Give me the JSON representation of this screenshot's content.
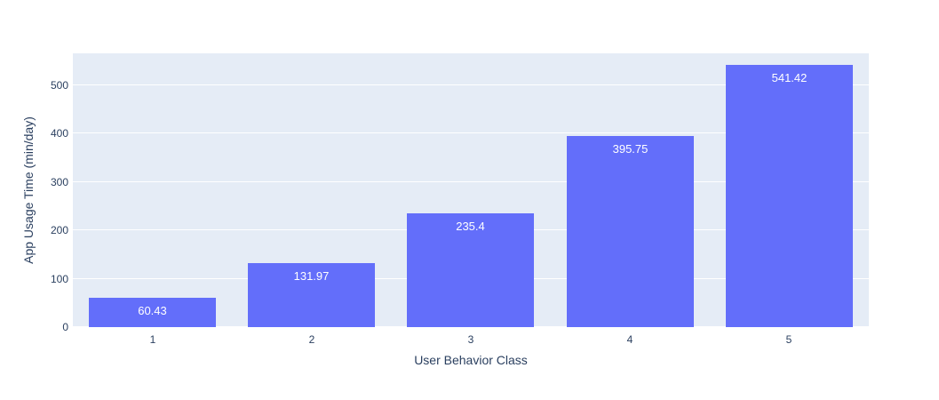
{
  "chart_data": {
    "type": "bar",
    "title": "",
    "xlabel": "User Behavior Class",
    "ylabel": "App Usage Time (min/day)",
    "categories": [
      "1",
      "2",
      "3",
      "4",
      "5"
    ],
    "values": [
      60.43,
      131.97,
      235.4,
      395.75,
      541.42
    ],
    "bar_labels": [
      "60.43",
      "131.97",
      "235.4",
      "395.75",
      "541.42"
    ],
    "y_ticks": [
      0,
      100,
      200,
      300,
      400,
      500
    ],
    "ylim": [
      0,
      566
    ],
    "bar_band_fraction": 0.8,
    "grid": "horizontal",
    "legend": "none",
    "colors": {
      "bar": "#636EFA",
      "plot_background": "#E5ECF6",
      "gridline": "#FFFFFF",
      "axis_text": "#2A3F5F",
      "bar_label_text": "#FFFFFF",
      "page_background": "#FFFFFF"
    }
  }
}
